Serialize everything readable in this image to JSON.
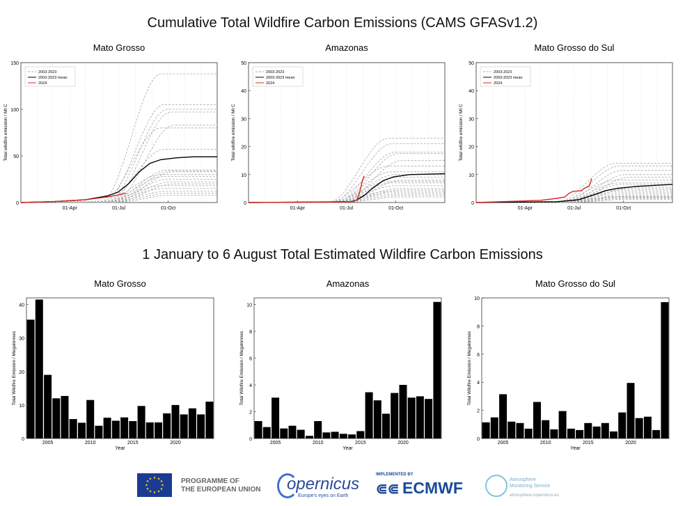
{
  "page": {
    "title_top": "Cumulative Total Wildfire Carbon Emissions (CAMS GFASv1.2)",
    "title_bottom": "1 January to 6 August Total Estimated Wildfire Carbon Emissions"
  },
  "footer": {
    "eu_line1": "PROGRAMME OF",
    "eu_line2": "THE EUROPEAN UNION",
    "copernicus": "opernicus",
    "copernicus_sub": "Europe's eyes on Earth",
    "ecmwf_impl": "IMPLEMENTED BY",
    "ecmwf": "ECMWF",
    "ams_line1": "Atmosphere",
    "ams_line2": "Monitoring Service",
    "ams_url": "atmosphere.copernicus.eu"
  },
  "colors": {
    "history": "#a8a8a8",
    "mean": "#000000",
    "current": "#d42a20",
    "bar": "#000000"
  },
  "chart_data": [
    {
      "type": "line",
      "title": "Mato Grosso",
      "ylabel": "Total wildfire emission / Mt C",
      "xlabel": "",
      "ylim": [
        0,
        150
      ],
      "yticks": [
        0,
        50,
        100,
        150
      ],
      "xticks": [
        {
          "day": 91,
          "label": "01-Apr"
        },
        {
          "day": 182,
          "label": "01-Jul"
        },
        {
          "day": 274,
          "label": "01-Oct"
        }
      ],
      "legend": {
        "placement": "top-left",
        "items": [
          "2003-2023",
          "2003-2023 mean",
          "2024"
        ]
      },
      "historical_finals": [
        138,
        105,
        100,
        97,
        83,
        80,
        57,
        35,
        34,
        33,
        30,
        28,
        25,
        22,
        20,
        18,
        15,
        12,
        10,
        8
      ],
      "mean": [
        [
          0,
          0
        ],
        [
          60,
          1
        ],
        [
          120,
          3
        ],
        [
          160,
          7
        ],
        [
          180,
          11
        ],
        [
          200,
          20
        ],
        [
          220,
          33
        ],
        [
          240,
          42
        ],
        [
          260,
          46
        ],
        [
          290,
          48
        ],
        [
          320,
          49
        ],
        [
          365,
          49
        ]
      ],
      "current": [
        [
          0,
          0
        ],
        [
          60,
          1
        ],
        [
          120,
          3
        ],
        [
          160,
          6
        ],
        [
          180,
          8
        ],
        [
          195,
          10
        ]
      ]
    },
    {
      "type": "line",
      "title": "Amazonas",
      "ylabel": "Total wildfire emission / Mt C",
      "xlabel": "",
      "ylim": [
        0,
        50
      ],
      "yticks": [
        0,
        10,
        20,
        30,
        40,
        50
      ],
      "xticks": [
        {
          "day": 91,
          "label": "01-Apr"
        },
        {
          "day": 182,
          "label": "01-Jul"
        },
        {
          "day": 274,
          "label": "01-Oct"
        }
      ],
      "legend": {
        "placement": "top-left",
        "items": [
          "2003-2023",
          "2003-2023 mean",
          "2024"
        ]
      },
      "historical_finals": [
        23,
        21,
        18,
        17.5,
        15,
        13,
        11,
        10,
        9,
        8,
        7.5,
        7,
        6,
        5,
        4.5,
        4,
        3.5,
        3,
        2.5,
        2
      ],
      "mean": [
        [
          0,
          0
        ],
        [
          190,
          0.3
        ],
        [
          200,
          0.8
        ],
        [
          215,
          2.5
        ],
        [
          230,
          5
        ],
        [
          250,
          7.8
        ],
        [
          270,
          9.2
        ],
        [
          300,
          10
        ],
        [
          365,
          10.3
        ]
      ],
      "current": [
        [
          0,
          0
        ],
        [
          180,
          0.2
        ],
        [
          195,
          0.4
        ],
        [
          202,
          1
        ],
        [
          207,
          4
        ],
        [
          212,
          8
        ],
        [
          215,
          9.5
        ]
      ]
    },
    {
      "type": "line",
      "title": "Mato Grosso do Sul",
      "ylabel": "Total wildfire emission / Mt C",
      "xlabel": "",
      "ylim": [
        0,
        50
      ],
      "yticks": [
        0,
        10,
        20,
        30,
        40,
        50
      ],
      "xticks": [
        {
          "day": 91,
          "label": "01-Apr"
        },
        {
          "day": 182,
          "label": "01-Jul"
        },
        {
          "day": 274,
          "label": "01-Oct"
        }
      ],
      "legend": {
        "placement": "top-left",
        "items": [
          "2003-2023",
          "2003-2023 mean",
          "2024"
        ]
      },
      "historical_finals": [
        14,
        13,
        11.5,
        10,
        9,
        8,
        7,
        6.5,
        5.5,
        5,
        4.5,
        4,
        3.5,
        3,
        2.5,
        2.2,
        2,
        1.8,
        1.5,
        1.2
      ],
      "mean": [
        [
          0,
          0
        ],
        [
          150,
          0.3
        ],
        [
          190,
          1
        ],
        [
          220,
          2.8
        ],
        [
          240,
          4.2
        ],
        [
          260,
          5
        ],
        [
          300,
          5.8
        ],
        [
          365,
          6.5
        ]
      ],
      "current": [
        [
          0,
          0
        ],
        [
          120,
          0.8
        ],
        [
          150,
          1.5
        ],
        [
          165,
          2
        ],
        [
          172,
          3.2
        ],
        [
          180,
          4
        ],
        [
          195,
          4.2
        ],
        [
          202,
          5.2
        ],
        [
          210,
          5.8
        ],
        [
          213,
          7.5
        ],
        [
          215,
          8.5
        ]
      ]
    },
    {
      "type": "bar",
      "title": "Mato Grosso",
      "ylabel": "Total Wildfire Emission / Megatonnes",
      "xlabel": "Year",
      "ylim": [
        0,
        42
      ],
      "yticks": [
        0,
        10,
        20,
        30,
        40
      ],
      "xticks": [
        2005,
        2010,
        2015,
        2020
      ],
      "categories": [
        2003,
        2004,
        2005,
        2006,
        2007,
        2008,
        2009,
        2010,
        2011,
        2012,
        2013,
        2014,
        2015,
        2016,
        2017,
        2018,
        2019,
        2020,
        2021,
        2022,
        2023,
        2024
      ],
      "values": [
        35.5,
        41.5,
        19,
        12,
        12.7,
        5.8,
        4.7,
        11.5,
        3.8,
        6.2,
        5.3,
        6.3,
        5.2,
        9.7,
        4.8,
        4.8,
        7.5,
        10,
        7.2,
        9,
        7.2,
        11
      ]
    },
    {
      "type": "bar",
      "title": "Amazonas",
      "ylabel": "Total Wildfire Emission / Megatonnes",
      "xlabel": "Year",
      "ylim": [
        0,
        10.5
      ],
      "yticks": [
        0,
        2,
        4,
        6,
        8,
        10
      ],
      "xticks": [
        2005,
        2010,
        2015,
        2020
      ],
      "categories": [
        2003,
        2004,
        2005,
        2006,
        2007,
        2008,
        2009,
        2010,
        2011,
        2012,
        2013,
        2014,
        2015,
        2016,
        2017,
        2018,
        2019,
        2020,
        2021,
        2022,
        2023,
        2024
      ],
      "values": [
        1.3,
        0.85,
        3.05,
        0.75,
        0.95,
        0.65,
        0.2,
        1.3,
        0.45,
        0.5,
        0.35,
        0.3,
        0.55,
        3.45,
        2.85,
        1.85,
        3.4,
        4,
        3.05,
        3.15,
        2.95,
        10.2
      ]
    },
    {
      "type": "bar",
      "title": "Mato Grosso do Sul",
      "ylabel": "Total Wildfire Emission / Megatonnes",
      "xlabel": "Year",
      "ylim": [
        0,
        10
      ],
      "yticks": [
        0,
        2,
        4,
        6,
        8,
        10
      ],
      "xticks": [
        2005,
        2010,
        2015,
        2020
      ],
      "categories": [
        2003,
        2004,
        2005,
        2006,
        2007,
        2008,
        2009,
        2010,
        2011,
        2012,
        2013,
        2014,
        2015,
        2016,
        2017,
        2018,
        2019,
        2020,
        2021,
        2022,
        2023,
        2024
      ],
      "values": [
        1.15,
        1.5,
        3.15,
        1.2,
        1.1,
        0.7,
        2.6,
        1.3,
        0.65,
        1.95,
        0.7,
        0.6,
        1.1,
        0.85,
        1.1,
        0.5,
        1.85,
        3.95,
        1.45,
        1.55,
        0.6,
        9.7
      ]
    }
  ]
}
